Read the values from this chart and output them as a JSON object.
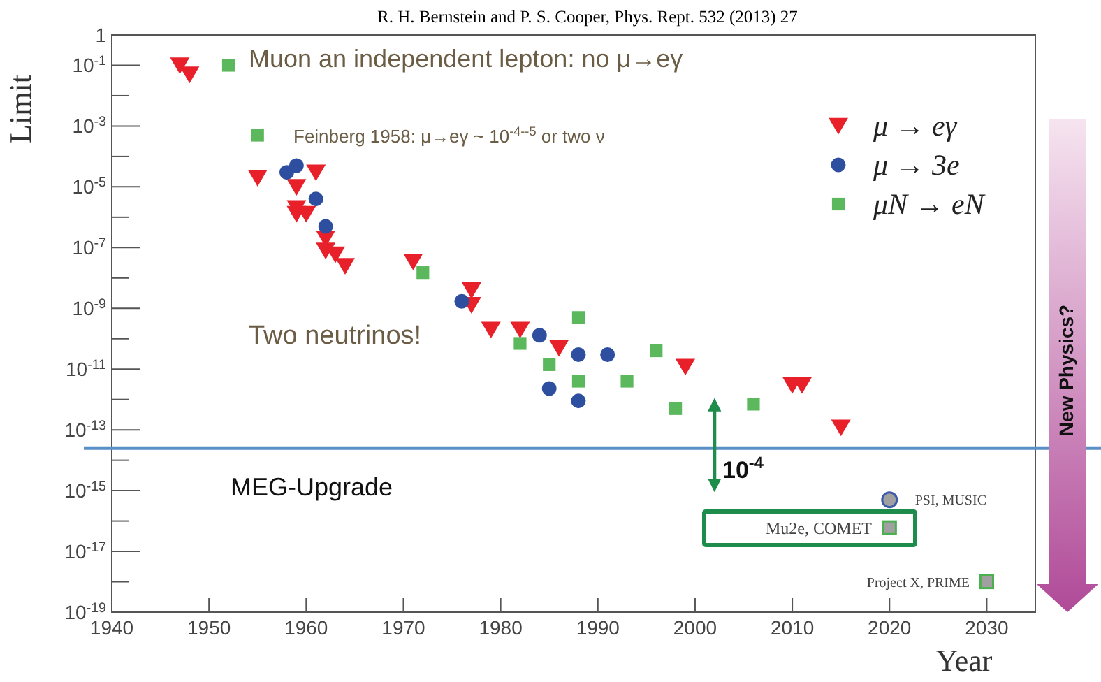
{
  "chart_data": {
    "type": "scatter",
    "title": "R. H. Bernstein and P. S. Cooper, Phys. Rept. 532 (2013) 27",
    "xlabel": "Year",
    "ylabel": "Limit",
    "log": "y",
    "grid": false,
    "legend": "top right",
    "xlim": [
      1940,
      2035
    ],
    "xticks": [
      1940,
      1950,
      1960,
      1970,
      1980,
      1990,
      2000,
      2010,
      2020,
      2030
    ],
    "ylim": [
      1e-19,
      1
    ],
    "yticks": [
      {
        "value": 1,
        "label": "1"
      },
      {
        "value": 0.1,
        "label": "10$^{-1}$"
      },
      {
        "value": 0.01,
        "label": null
      },
      {
        "value": 0.001,
        "label": "10$^{-3}$"
      },
      {
        "value": 0.0001,
        "label": null
      },
      {
        "value": 1e-05,
        "label": "10$^{-5}$"
      },
      {
        "value": 1e-06,
        "label": null
      },
      {
        "value": 1e-07,
        "label": "10$^{-7}$"
      },
      {
        "value": 1e-08,
        "label": null
      },
      {
        "value": 1e-09,
        "label": "10$^{-9}$"
      },
      {
        "value": 1e-10,
        "label": null
      },
      {
        "value": 1e-11,
        "label": "10$^{-11}$"
      },
      {
        "value": 1e-12,
        "label": null
      },
      {
        "value": 1e-13,
        "label": "10$^{-13}$"
      },
      {
        "value": 1e-14,
        "label": null
      },
      {
        "value": 1e-15,
        "label": "10$^{-15}$"
      },
      {
        "value": 1e-16,
        "label": null
      },
      {
        "value": 1e-17,
        "label": "10$^{-17}$"
      },
      {
        "value": 1e-18,
        "label": null
      },
      {
        "value": 1e-19,
        "label": "10$^{-19}$"
      }
    ],
    "series": [
      {
        "name": "μ → eγ",
        "color": "#e8202a",
        "marker": "triangle",
        "x": [
          1947,
          1948,
          1955,
          1961,
          1959,
          1959,
          1959,
          1960,
          1962,
          1962,
          1963,
          1964,
          1971,
          1977,
          1977,
          1979,
          1982,
          1986,
          1999,
          2010,
          2011,
          2015
        ],
        "values": [
          0.1,
          0.05,
          2e-05,
          3e-05,
          1e-05,
          2e-06,
          1.3e-06,
          1.3e-06,
          2e-07,
          8e-08,
          6e-08,
          2.5e-08,
          3.5e-08,
          4e-09,
          1.3e-09,
          2e-10,
          2e-10,
          5e-11,
          1.2e-11,
          3e-12,
          3e-12,
          1.2e-13
        ]
      },
      {
        "name": "μ → 3e",
        "color": "#2e4fa0",
        "marker": "circle",
        "x": [
          1958,
          1959,
          1961,
          1962,
          1976,
          1984,
          1985,
          1988,
          1991,
          1988
        ],
        "values": [
          3e-05,
          5e-05,
          4e-06,
          5e-07,
          1.7e-09,
          1.3e-10,
          2.3e-12,
          3e-11,
          3e-11,
          9e-13
        ]
      },
      {
        "name": "μN → eN",
        "color": "#5cb85c",
        "marker": "square",
        "x": [
          1952,
          1955,
          1972,
          1982,
          1988,
          1985,
          1988,
          1993,
          1996,
          1998,
          2006
        ],
        "values": [
          0.1,
          0.0005,
          1.5e-08,
          7e-11,
          5e-10,
          1.4e-11,
          4e-12,
          4e-12,
          4e-11,
          5e-13,
          7e-13
        ]
      },
      {
        "color": "#a0a0a0",
        "marker": "circle",
        "x": [
          2020
        ],
        "values": [
          5e-16
        ]
      },
      {
        "color": "#a0a0a0",
        "marker": "square",
        "x": [
          2020,
          2030
        ],
        "values": [
          6e-17,
          1e-18
        ]
      }
    ],
    "ref_lines": [
      {
        "axis": "y",
        "value": 2.5e-14,
        "label": "MEG-Upgrade",
        "color": "#5b8fc7"
      }
    ],
    "annotations": [
      "Muon an independent lepton: no μ→eγ",
      "Feinberg 1958: μ→eγ ~ 10$^{-4--5}$ or two ν",
      "Two neutrinos!",
      "10$^{-4}$",
      "New Physics?",
      "PSI, MUSIC",
      "Mu2e, COMET",
      "Project X, PRIME"
    ]
  }
}
